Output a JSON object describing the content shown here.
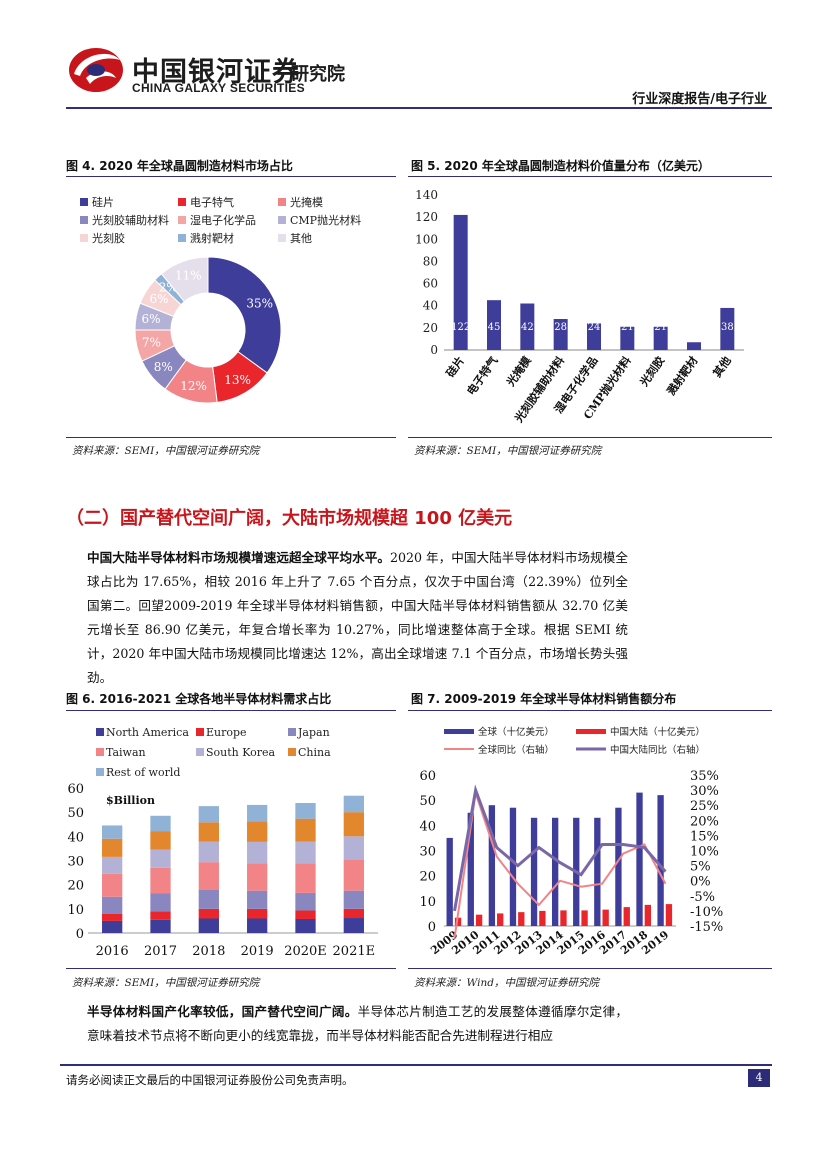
{
  "header": {
    "logo_cn": "中国银河证券",
    "logo_en": "CHINA GALAXY SECURITIES",
    "institute": "研究院",
    "category": "行业深度报告/电子行业"
  },
  "fig4": {
    "title": "图 4. 2020 年全球晶圆制造材料市场占比",
    "source": "资料来源：SEMI，中国银河证券研究院",
    "chart_data": {
      "type": "pie",
      "title": "2020 年全球晶圆制造材料市场占比",
      "labels": [
        "硅片",
        "电子特气",
        "光掩模",
        "光刻胶辅助材料",
        "湿电子化学品",
        "CMP抛光材料",
        "光刻胶",
        "溅射靶材",
        "其他"
      ],
      "values": [
        35,
        13,
        12,
        8,
        7,
        6,
        6,
        2,
        11
      ],
      "value_labels": [
        "35%",
        "13%",
        "12%",
        "8%",
        "7%",
        "6%",
        "6%",
        "2%",
        "11%"
      ],
      "colors": [
        "#3f3d9a",
        "#e8262b",
        "#f28488",
        "#8a86c0",
        "#f4a6a6",
        "#b4b1d6",
        "#f8d5d5",
        "#8fb2d6",
        "#e4dfea"
      ],
      "legend": "top"
    }
  },
  "fig5": {
    "title": "图 5. 2020 年全球晶圆制造材料价值量分布（亿美元）",
    "source": "资料来源：SEMI，中国银河证券研究院",
    "chart_data": {
      "type": "bar",
      "categories": [
        "硅片",
        "电子特气",
        "光掩模",
        "光刻胶辅助材料",
        "湿电子化学品",
        "CMP抛光材料",
        "光刻胶",
        "溅射靶材",
        "其他"
      ],
      "values": [
        122,
        45,
        42,
        28,
        24,
        21,
        21,
        7,
        38
      ],
      "ylim": [
        0,
        140
      ],
      "yticks": [
        0,
        20,
        40,
        60,
        80,
        100,
        120,
        140
      ],
      "color": "#3f3d9a",
      "xlabel": "",
      "ylabel": ""
    }
  },
  "section_title": "（二）国产替代空间广阔，大陆市场规模超 100 亿美元",
  "para1": {
    "bold": "中国大陆半导体材料市场规模增速远超全球平均水平。",
    "text": "2020 年，中国大陆半导体材料市场规模全球占比为 17.65%，相较 2016 年上升了 7.65 个百分点，仅次于中国台湾（22.39%）位列全国第二。回望2009-2019 年全球半导体材料销售额，中国大陆半导体材料销售额从 32.70 亿美元增长至 86.90 亿美元，年复合增长率为 10.27%，同比增速整体高于全球。根据 SEMI 统计，2020 年中国大陆市场规模同比增速达 12%，高出全球增速 7.1 个百分点，市场增长势头强劲。"
  },
  "fig6": {
    "title": "图 6. 2016-2021 全球各地半导体材料需求占比",
    "source": "资料来源：SEMI，中国银河证券研究院",
    "chart_data": {
      "type": "bar",
      "stacked": true,
      "categories": [
        "2016",
        "2017",
        "2018",
        "2019",
        "2020E",
        "2021E"
      ],
      "unit_label": "$Billion",
      "ylim": [
        0,
        60
      ],
      "yticks": [
        0,
        10,
        20,
        30,
        40,
        50,
        60
      ],
      "series": [
        {
          "name": "North America",
          "color": "#3f3d9a",
          "values": [
            5.0,
            5.5,
            6.0,
            6.0,
            5.8,
            6.2
          ]
        },
        {
          "name": "Europe",
          "color": "#e8262b",
          "values": [
            3.0,
            3.5,
            4.0,
            4.0,
            3.5,
            3.8
          ]
        },
        {
          "name": "Japan",
          "color": "#8a86c0",
          "values": [
            7.0,
            7.5,
            7.8,
            7.5,
            7.3,
            7.5
          ]
        },
        {
          "name": "Taiwan",
          "color": "#f28488",
          "values": [
            9.5,
            10.5,
            11.5,
            11.4,
            12.2,
            13.0
          ]
        },
        {
          "name": "South Korea",
          "color": "#b4b1d6",
          "values": [
            7.0,
            7.5,
            8.5,
            8.8,
            9.0,
            9.5
          ]
        },
        {
          "name": "China",
          "color": "#e2872e",
          "values": [
            7.5,
            7.5,
            8.0,
            8.5,
            9.5,
            10.0
          ]
        },
        {
          "name": "Rest of world",
          "color": "#8fb2d6",
          "values": [
            5.5,
            6.5,
            6.7,
            6.8,
            6.5,
            6.8
          ]
        }
      ]
    }
  },
  "fig7": {
    "title": "图 7. 2009-2019 年全球半导体材料销售额分布",
    "source": "资料来源：Wind，中国银河证券研究院",
    "chart_data": {
      "type": "bar",
      "x": [
        "2009",
        "2010",
        "2011",
        "2012",
        "2013",
        "2014",
        "2015",
        "2016",
        "2017",
        "2018",
        "2019"
      ],
      "ylim": [
        0,
        60
      ],
      "yticks": [
        0,
        10,
        20,
        30,
        40,
        50,
        60
      ],
      "y2lim": [
        -15,
        35
      ],
      "y2ticks": [
        "35%",
        "30%",
        "25%",
        "20%",
        "15%",
        "10%",
        "5%",
        "0%",
        "-5%",
        "-10%",
        "-15%"
      ],
      "series": [
        {
          "name": "全球（十亿美元）",
          "kind": "bar",
          "axis": "left",
          "color": "#3f3d9a",
          "values": [
            35,
            45,
            48,
            47,
            43,
            43,
            43,
            43,
            47,
            53,
            52
          ]
        },
        {
          "name": "中国大陆（十亿美元）",
          "kind": "bar",
          "axis": "left",
          "color": "#e8262b",
          "values": [
            3.3,
            4.5,
            5.0,
            5.5,
            6.0,
            6.2,
            6.2,
            6.5,
            7.5,
            8.4,
            8.7
          ]
        },
        {
          "name": "全球同比（右轴）",
          "kind": "line",
          "axis": "right",
          "color": "#f28488",
          "values": [
            -19,
            29,
            8,
            -1,
            -8,
            0,
            -2,
            -1,
            9,
            12,
            -1
          ]
        },
        {
          "name": "中国大陆同比（右轴）",
          "kind": "line",
          "axis": "right",
          "color": "#7a67a8",
          "values": [
            -10,
            30,
            11,
            5,
            11,
            6,
            2,
            12,
            12,
            11,
            3
          ]
        }
      ]
    }
  },
  "para2": {
    "bold": "半导体材料国产化率较低，国产替代空间广阔。",
    "text": "半导体芯片制造工艺的发展整体遵循摩尔定律，意味着技术节点将不断向更小的线宽靠拢，而半导体材料能否配合先进制程进行相应"
  },
  "footer": {
    "disclaimer": "请务必阅读正文最后的中国银河证券股份公司免责声明。",
    "page": "4"
  }
}
